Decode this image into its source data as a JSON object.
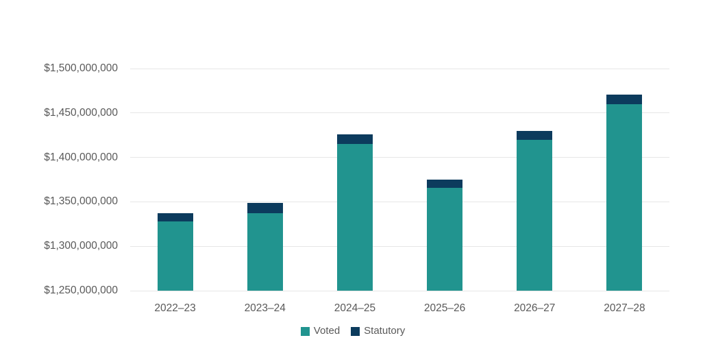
{
  "colors": {
    "background": "#FFFFFF",
    "text": "#595959",
    "grid": "#E6E6E6",
    "voted": "#21948F",
    "statutory": "#0C3B5D"
  },
  "legend": {
    "items": [
      {
        "label": "Voted",
        "color": "#21948F"
      },
      {
        "label": "Statutory",
        "color": "#0C3B5D"
      }
    ]
  },
  "chart_data": {
    "type": "bar",
    "stacked": true,
    "title": "",
    "xlabel": "",
    "ylabel": "",
    "categories": [
      "2022–23",
      "2023–24",
      "2024–25",
      "2025–26",
      "2026–27",
      "2027–28"
    ],
    "series": [
      {
        "name": "Voted",
        "color": "#21948F",
        "values": [
          1328000000,
          1337000000,
          1415000000,
          1366000000,
          1420000000,
          1460000000
        ]
      },
      {
        "name": "Statutory",
        "color": "#0C3B5D",
        "values": [
          9000000,
          12000000,
          11000000,
          9000000,
          10000000,
          11000000
        ]
      }
    ],
    "stacked_totals": [
      1337000000,
      1349000000,
      1426000000,
      1375000000,
      1430000000,
      1471000000
    ],
    "ylim": [
      1250000000,
      1500000000
    ],
    "ytick_step": 50000000,
    "ytick_labels_top_down": [
      "$1,500,000,000",
      "$1,450,000,000",
      "$1,400,000,000",
      "$1,350,000,000",
      "$1,300,000,000",
      "$1,250,000,000"
    ],
    "grid": true,
    "legend_position": "bottom"
  }
}
